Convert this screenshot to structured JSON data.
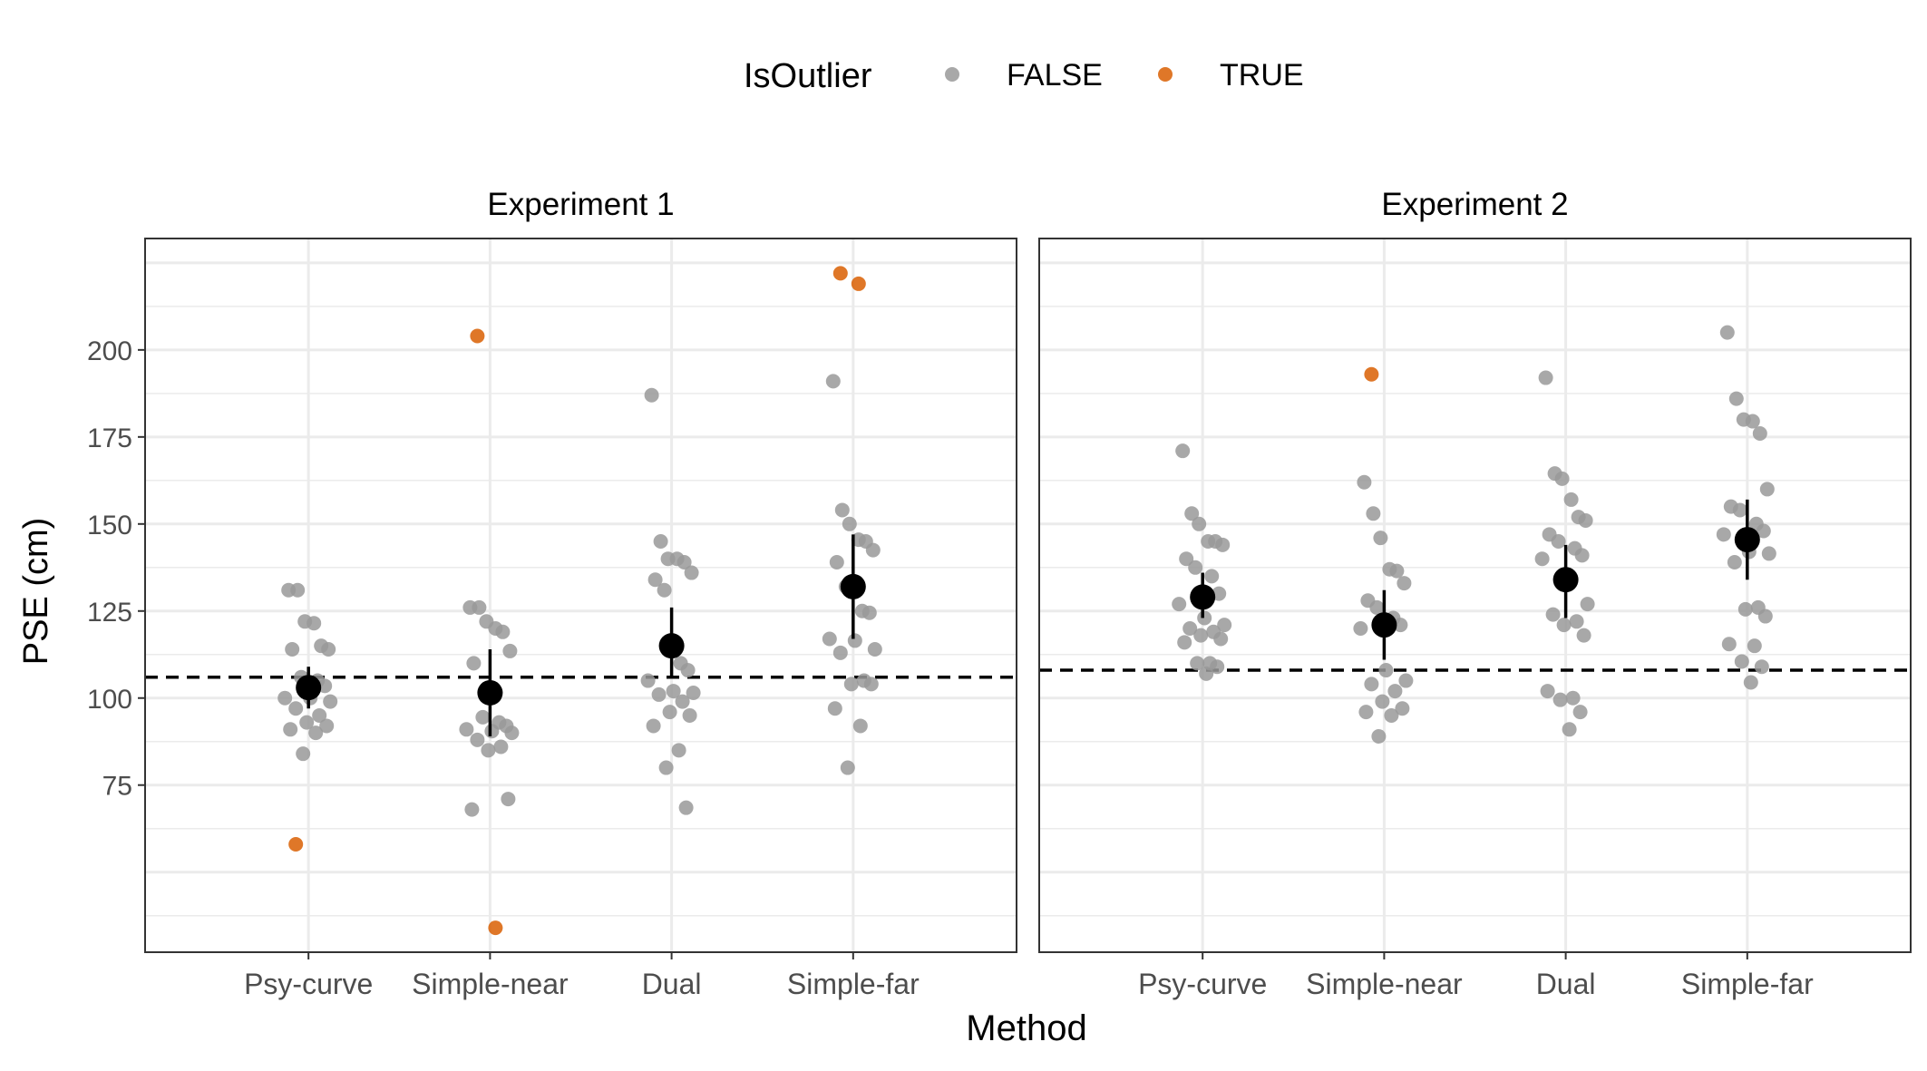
{
  "chart_data": {
    "type": "scatter",
    "xlabel": "Method",
    "ylabel": "PSE (cm)",
    "categories": [
      "Psy-curve",
      "Simple-near",
      "Dual",
      "Simple-far"
    ],
    "ylim": [
      27,
      232
    ],
    "yticks": [
      75,
      100,
      125,
      150,
      175,
      200
    ],
    "grid": true,
    "legend": {
      "title": "IsOutlier",
      "position": "top",
      "entries": [
        {
          "label": "FALSE",
          "color": "#999999"
        },
        {
          "label": "TRUE",
          "color": "#d95f02"
        }
      ]
    },
    "panels": [
      {
        "title": "Experiment 1",
        "reference_line": 106,
        "summary": [
          {
            "category": "Psy-curve",
            "mean": 103,
            "lower": 97,
            "upper": 109
          },
          {
            "category": "Simple-near",
            "mean": 101.5,
            "lower": 89,
            "upper": 114
          },
          {
            "category": "Dual",
            "mean": 115,
            "lower": 106,
            "upper": 126
          },
          {
            "category": "Simple-far",
            "mean": 132,
            "lower": 117,
            "upper": 147
          }
        ],
        "points": [
          {
            "category": "Psy-curve",
            "values": [
              131,
              131,
              122,
              121.5,
              115,
              114,
              114,
              106,
              105,
              103.5,
              100,
              100,
              99,
              97,
              95,
              93,
              92,
              91,
              90,
              84
            ],
            "outliers": [
              58
            ]
          },
          {
            "category": "Simple-near",
            "values": [
              126,
              126,
              122,
              120,
              119,
              113.5,
              110,
              94.5,
              93,
              92,
              91,
              90.5,
              90,
              88,
              86,
              85,
              71,
              68
            ],
            "outliers": [
              204,
              34
            ]
          },
          {
            "category": "Dual",
            "values": [
              187,
              145,
              140,
              140,
              139,
              136,
              134,
              131,
              110,
              108,
              105,
              102,
              101.5,
              101,
              99,
              96,
              95,
              92,
              85,
              80,
              68.5
            ],
            "outliers": []
          },
          {
            "category": "Simple-far",
            "values": [
              191,
              154,
              150,
              145.5,
              145,
              142.5,
              139,
              132,
              125,
              124.5,
              117,
              116.5,
              114,
              113,
              105,
              104,
              104,
              97,
              92,
              80
            ],
            "outliers": [
              222,
              219
            ]
          }
        ]
      },
      {
        "title": "Experiment 2",
        "reference_line": 108,
        "summary": [
          {
            "category": "Psy-curve",
            "mean": 129,
            "lower": 123,
            "upper": 136
          },
          {
            "category": "Simple-near",
            "mean": 121,
            "lower": 111,
            "upper": 131
          },
          {
            "category": "Dual",
            "mean": 134,
            "lower": 123,
            "upper": 144
          },
          {
            "category": "Simple-far",
            "mean": 145.5,
            "lower": 134,
            "upper": 157
          }
        ],
        "points": [
          {
            "category": "Psy-curve",
            "values": [
              171,
              153,
              150,
              145,
              145,
              144,
              140,
              137.5,
              135,
              130,
              127,
              123,
              121,
              120,
              119,
              118,
              117,
              116,
              110,
              110,
              109,
              107
            ],
            "outliers": []
          },
          {
            "category": "Simple-near",
            "values": [
              162,
              153,
              146,
              137,
              136.5,
              133,
              128,
              126,
              123,
              121,
              120,
              108,
              105,
              104,
              102,
              99,
              97,
              96,
              95,
              89
            ],
            "outliers": [
              193
            ]
          },
          {
            "category": "Dual",
            "values": [
              192,
              164.5,
              163,
              157,
              152,
              151,
              147,
              145,
              143,
              141,
              140,
              134,
              127,
              124,
              122,
              121,
              118,
              102,
              100,
              99.5,
              96,
              91
            ],
            "outliers": []
          },
          {
            "category": "Simple-far",
            "values": [
              205,
              186,
              180,
              179.5,
              176,
              160,
              155,
              154,
              150,
              148,
              147,
              142,
              141.5,
              139,
              126,
              125.5,
              123.5,
              115.5,
              115,
              110.5,
              109,
              104.5
            ],
            "outliers": []
          }
        ]
      }
    ]
  }
}
